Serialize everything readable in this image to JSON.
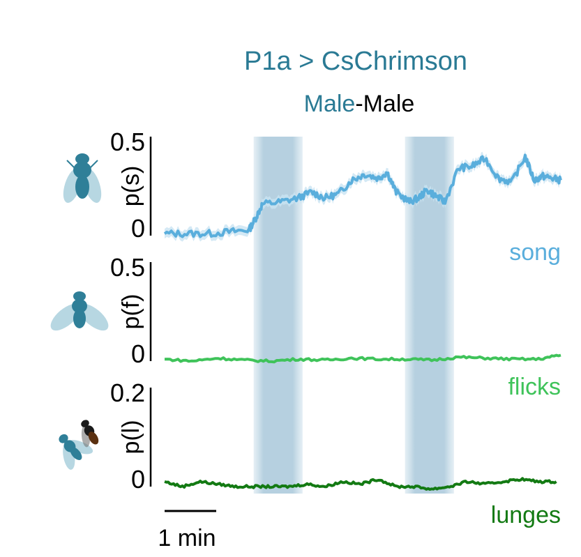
{
  "title": {
    "line1": "P1a > CsChrimson",
    "line2_part1": "Male",
    "line2_part2": "-Male"
  },
  "colors": {
    "title": "#2a7a94",
    "stim": "#9ec1d4",
    "song": "#5aaedc",
    "song_band": "#c9e4f2",
    "flicks": "#3fc35a",
    "lunges": "#137a13",
    "fly": "#2f7f98",
    "fly_wing": "#8fc3d4",
    "fly_dark": "#1a1a1a"
  },
  "scale_bar": {
    "label": "1 min"
  },
  "chart_data": [
    {
      "type": "line",
      "name": "song",
      "label": "song",
      "ylabel": "p(s)",
      "ylim": [
        0,
        0.5
      ],
      "yticks": [
        "0",
        "0.5"
      ],
      "color": "#5aaedc",
      "x_minutes": [
        0,
        0.5,
        1.0,
        1.5,
        1.9,
        2.05,
        2.2,
        2.6,
        3.0,
        3.3,
        3.6,
        3.9,
        4.2,
        4.5,
        4.8,
        5.0,
        5.2,
        5.5,
        5.7,
        5.9,
        6.1,
        6.3,
        6.6,
        6.9,
        7.2,
        7.5,
        7.8,
        8.1,
        8.3,
        8.5,
        8.7,
        8.9
      ],
      "values": [
        0.01,
        0.01,
        0.01,
        0.02,
        0.03,
        0.09,
        0.16,
        0.17,
        0.19,
        0.22,
        0.19,
        0.21,
        0.28,
        0.31,
        0.29,
        0.32,
        0.22,
        0.17,
        0.19,
        0.23,
        0.2,
        0.17,
        0.34,
        0.35,
        0.39,
        0.29,
        0.27,
        0.4,
        0.28,
        0.3,
        0.29,
        0.28
      ]
    },
    {
      "type": "line",
      "name": "flicks",
      "label": "flicks",
      "ylabel": "p(f)",
      "ylim": [
        0,
        0.5
      ],
      "yticks": [
        "0",
        "0.5"
      ],
      "color": "#3fc35a",
      "x_minutes": [
        0,
        0.6,
        1.2,
        1.8,
        2.4,
        3.0,
        3.6,
        4.2,
        4.8,
        5.4,
        6.0,
        6.6,
        7.2,
        7.8,
        8.4,
        8.9
      ],
      "values": [
        0.01,
        0.0,
        0.015,
        0.005,
        0.0,
        0.01,
        0.005,
        0.015,
        0.01,
        0.01,
        0.005,
        0.02,
        0.015,
        0.01,
        0.01,
        0.03
      ]
    },
    {
      "type": "line",
      "name": "lunges",
      "label": "lunges",
      "ylabel": "p(l)",
      "ylim": [
        0,
        0.2
      ],
      "yticks": [
        "0",
        "0.2"
      ],
      "color": "#137a13",
      "x_minutes": [
        0,
        0.4,
        0.8,
        1.2,
        1.6,
        2.0,
        2.4,
        2.8,
        3.2,
        3.6,
        4.0,
        4.4,
        4.8,
        5.2,
        5.6,
        6.0,
        6.4,
        6.8,
        7.2,
        7.6,
        8.0,
        8.4,
        8.8
      ],
      "values": [
        0.01,
        0.0,
        0.01,
        0.005,
        0.0,
        0.0,
        0.0,
        0.0,
        0.005,
        0.0,
        0.01,
        0.005,
        0.015,
        0.0,
        0.0,
        -0.005,
        0.0,
        0.01,
        0.005,
        0.01,
        0.015,
        0.01,
        0.01
      ]
    }
  ],
  "stim_windows_minutes": [
    [
      2.0,
      3.1
    ],
    [
      5.4,
      6.5
    ]
  ]
}
